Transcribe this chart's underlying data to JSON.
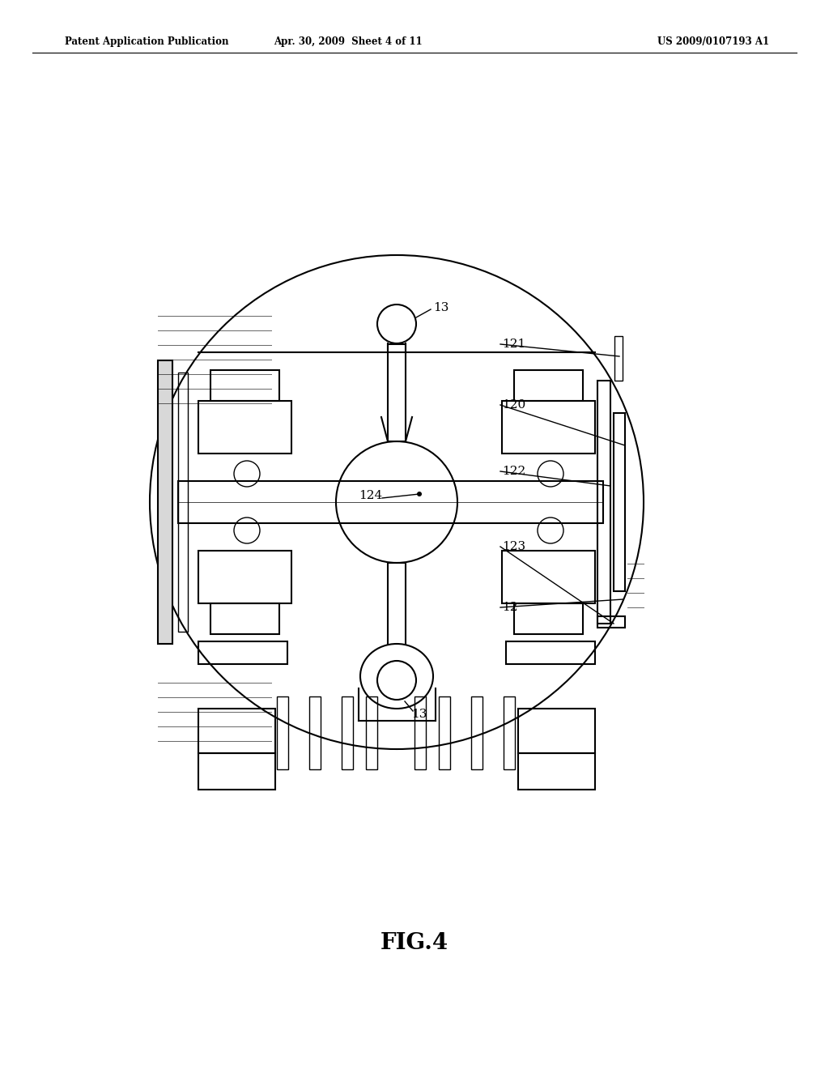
{
  "bg_color": "#ffffff",
  "line_color": "#000000",
  "fig_label": "FIG.4",
  "header_left": "Patent Application Publication",
  "header_mid": "Apr. 30, 2009  Sheet 4 of 11",
  "header_right": "US 2009/0107193 A1",
  "label_124": "124",
  "label_13_top": "13",
  "label_13_bot": "13",
  "label_121": "121",
  "label_120": "120",
  "label_122": "122",
  "label_123": "123",
  "label_12": "12"
}
